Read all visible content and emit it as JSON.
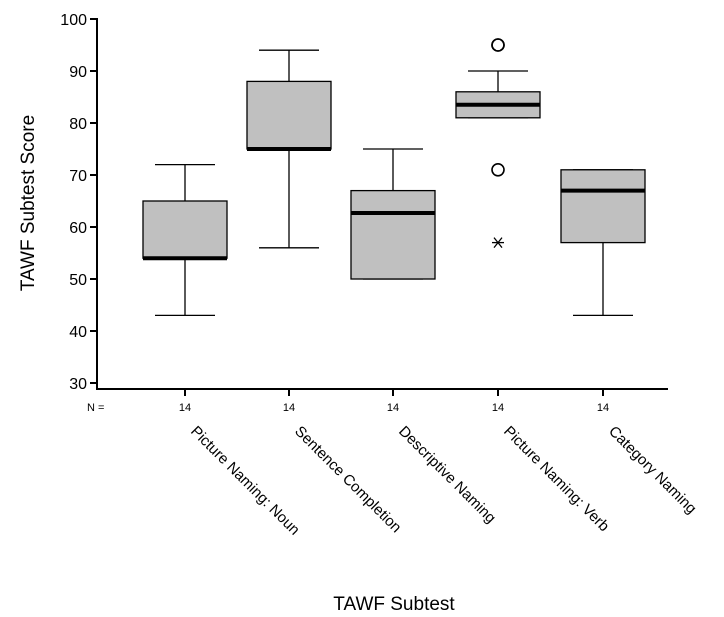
{
  "chart_data": {
    "type": "boxplot",
    "title": "",
    "xlabel": "TAWF Subtest",
    "ylabel": "TAWF Subtest Score",
    "ylim": [
      30,
      100
    ],
    "yticks": [
      30,
      40,
      50,
      60,
      70,
      80,
      90,
      100
    ],
    "n_label": "N =",
    "categories": [
      "Picture Naming: Noun",
      "Sentence Completion",
      "Descriptive Naming",
      "Picture Naming: Verb",
      "Category Naming"
    ],
    "n": [
      "14",
      "14",
      "14",
      "14",
      "14"
    ],
    "boxes": [
      {
        "min": 43,
        "q1": 54,
        "median": 54,
        "q3": 65,
        "max": 72,
        "outliers": [],
        "extremes": []
      },
      {
        "min": 56,
        "q1": 75,
        "median": 75,
        "q3": 88,
        "max": 94,
        "outliers": [],
        "extremes": []
      },
      {
        "min": 50,
        "q1": 50,
        "median": 62.7,
        "q3": 67,
        "max": 75,
        "outliers": [],
        "extremes": []
      },
      {
        "min": 81,
        "q1": 81,
        "median": 83.5,
        "q3": 86,
        "max": 90,
        "outliers": [
          95,
          95,
          71
        ],
        "extremes": [
          57
        ]
      },
      {
        "min": 43,
        "q1": 57,
        "median": 67,
        "q3": 71,
        "max": 71,
        "outliers": [],
        "extremes": []
      }
    ],
    "box_color": "#c0c0c0",
    "grid": false,
    "legend": "none"
  }
}
